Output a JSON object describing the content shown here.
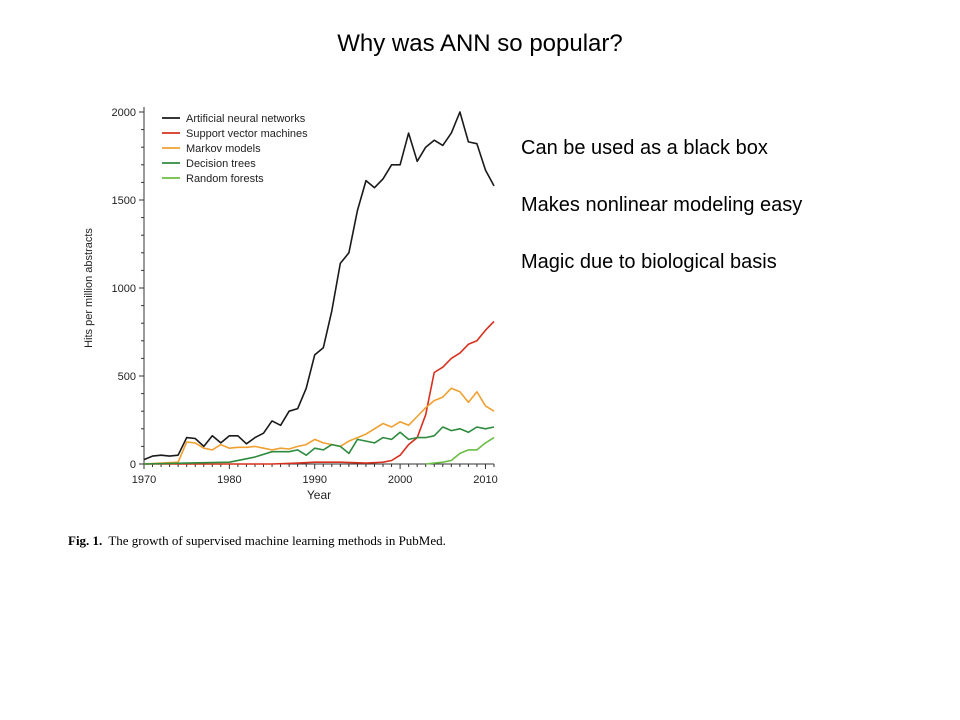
{
  "slide": {
    "title": "Why was ANN so popular?",
    "bullets": [
      "Can be used as a black box",
      "Makes nonlinear modeling easy",
      "Magic due to biological basis"
    ],
    "caption_label": "Fig. 1.",
    "caption_text": "The growth of supervised machine learning methods in PubMed."
  },
  "chart_data": {
    "type": "line",
    "title": "",
    "xlabel": "Year",
    "ylabel": "Hits per million abstracts",
    "xlim": [
      1970,
      2011
    ],
    "ylim": [
      0,
      2000
    ],
    "xticks": [
      1970,
      1980,
      1990,
      2000,
      2010
    ],
    "yticks": [
      0,
      500,
      1000,
      1500,
      2000
    ],
    "grid": false,
    "legend_position": "top-left",
    "series": [
      {
        "name": "Artificial neural networks",
        "color": "#1a1a1a",
        "points": [
          [
            1970,
            25
          ],
          [
            1971,
            45
          ],
          [
            1972,
            50
          ],
          [
            1973,
            45
          ],
          [
            1974,
            50
          ],
          [
            1975,
            150
          ],
          [
            1976,
            145
          ],
          [
            1977,
            100
          ],
          [
            1978,
            160
          ],
          [
            1979,
            120
          ],
          [
            1980,
            160
          ],
          [
            1981,
            160
          ],
          [
            1982,
            115
          ],
          [
            1983,
            150
          ],
          [
            1984,
            175
          ],
          [
            1985,
            245
          ],
          [
            1986,
            220
          ],
          [
            1987,
            300
          ],
          [
            1988,
            315
          ],
          [
            1989,
            430
          ],
          [
            1990,
            620
          ],
          [
            1991,
            660
          ],
          [
            1992,
            870
          ],
          [
            1993,
            1140
          ],
          [
            1994,
            1200
          ],
          [
            1995,
            1440
          ],
          [
            1996,
            1610
          ],
          [
            1997,
            1570
          ],
          [
            1998,
            1620
          ],
          [
            1999,
            1700
          ],
          [
            2000,
            1700
          ],
          [
            2001,
            1880
          ],
          [
            2002,
            1720
          ],
          [
            2003,
            1800
          ],
          [
            2004,
            1840
          ],
          [
            2005,
            1810
          ],
          [
            2006,
            1880
          ],
          [
            2007,
            2000
          ],
          [
            2008,
            1830
          ],
          [
            2009,
            1820
          ],
          [
            2010,
            1670
          ],
          [
            2011,
            1580
          ]
        ]
      },
      {
        "name": "Support vector machines",
        "color": "#d7301f",
        "points": [
          [
            1970,
            0
          ],
          [
            1985,
            0
          ],
          [
            1988,
            5
          ],
          [
            1990,
            10
          ],
          [
            1993,
            10
          ],
          [
            1996,
            5
          ],
          [
            1998,
            10
          ],
          [
            1999,
            20
          ],
          [
            2000,
            50
          ],
          [
            2001,
            110
          ],
          [
            2002,
            150
          ],
          [
            2003,
            280
          ],
          [
            2004,
            520
          ],
          [
            2005,
            550
          ],
          [
            2006,
            600
          ],
          [
            2007,
            630
          ],
          [
            2008,
            680
          ],
          [
            2009,
            700
          ],
          [
            2010,
            760
          ],
          [
            2011,
            810
          ]
        ]
      },
      {
        "name": "Markov models",
        "color": "#f0a030",
        "points": [
          [
            1970,
            0
          ],
          [
            1972,
            5
          ],
          [
            1974,
            10
          ],
          [
            1975,
            125
          ],
          [
            1976,
            120
          ],
          [
            1977,
            90
          ],
          [
            1978,
            80
          ],
          [
            1979,
            110
          ],
          [
            1980,
            90
          ],
          [
            1981,
            95
          ],
          [
            1982,
            95
          ],
          [
            1983,
            100
          ],
          [
            1984,
            90
          ],
          [
            1985,
            80
          ],
          [
            1986,
            90
          ],
          [
            1987,
            85
          ],
          [
            1988,
            100
          ],
          [
            1989,
            110
          ],
          [
            1990,
            140
          ],
          [
            1991,
            120
          ],
          [
            1992,
            110
          ],
          [
            1993,
            100
          ],
          [
            1994,
            130
          ],
          [
            1995,
            150
          ],
          [
            1996,
            170
          ],
          [
            1997,
            200
          ],
          [
            1998,
            230
          ],
          [
            1999,
            210
          ],
          [
            2000,
            240
          ],
          [
            2001,
            220
          ],
          [
            2002,
            270
          ],
          [
            2003,
            320
          ],
          [
            2004,
            360
          ],
          [
            2005,
            380
          ],
          [
            2006,
            430
          ],
          [
            2007,
            410
          ],
          [
            2008,
            350
          ],
          [
            2009,
            410
          ],
          [
            2010,
            330
          ],
          [
            2011,
            300
          ]
        ]
      },
      {
        "name": "Decision trees",
        "color": "#2e8b3e",
        "points": [
          [
            1970,
            0
          ],
          [
            1975,
            5
          ],
          [
            1980,
            10
          ],
          [
            1983,
            40
          ],
          [
            1985,
            70
          ],
          [
            1987,
            70
          ],
          [
            1988,
            80
          ],
          [
            1989,
            50
          ],
          [
            1990,
            90
          ],
          [
            1991,
            80
          ],
          [
            1992,
            110
          ],
          [
            1993,
            100
          ],
          [
            1994,
            60
          ],
          [
            1995,
            140
          ],
          [
            1996,
            130
          ],
          [
            1997,
            120
          ],
          [
            1998,
            150
          ],
          [
            1999,
            140
          ],
          [
            2000,
            180
          ],
          [
            2001,
            140
          ],
          [
            2002,
            150
          ],
          [
            2003,
            150
          ],
          [
            2004,
            160
          ],
          [
            2005,
            210
          ],
          [
            2006,
            190
          ],
          [
            2007,
            200
          ],
          [
            2008,
            180
          ],
          [
            2009,
            210
          ],
          [
            2010,
            200
          ],
          [
            2011,
            210
          ]
        ]
      },
      {
        "name": "Random forests",
        "color": "#6bbd45",
        "points": [
          [
            2003,
            0
          ],
          [
            2004,
            5
          ],
          [
            2005,
            10
          ],
          [
            2006,
            20
          ],
          [
            2007,
            60
          ],
          [
            2008,
            80
          ],
          [
            2009,
            80
          ],
          [
            2010,
            120
          ],
          [
            2011,
            150
          ]
        ]
      }
    ]
  }
}
